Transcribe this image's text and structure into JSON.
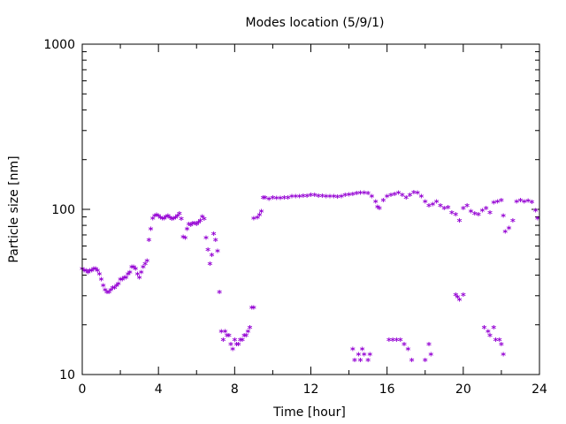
{
  "chart_data": {
    "type": "scatter",
    "title": "Modes location (5/9/1)",
    "xlabel": "Time [hour]",
    "ylabel": "Particle size [nm]",
    "xlim": [
      0,
      24
    ],
    "ylim": [
      10,
      1000
    ],
    "yscale": "log",
    "xticks": [
      0,
      4,
      8,
      12,
      16,
      20,
      24
    ],
    "yticks": [
      10,
      100,
      1000
    ],
    "xtick_labels": [
      "0",
      "4",
      "8",
      "12",
      "16",
      "20",
      "24"
    ],
    "ytick_labels": [
      "10",
      "100",
      "1000"
    ],
    "grid": false,
    "marker": "*",
    "color": "#9400d3",
    "series": [
      {
        "name": "mode",
        "points": [
          [
            0.0,
            43
          ],
          [
            0.1,
            42
          ],
          [
            0.2,
            42
          ],
          [
            0.3,
            41
          ],
          [
            0.4,
            42
          ],
          [
            0.5,
            42
          ],
          [
            0.6,
            43
          ],
          [
            0.7,
            43
          ],
          [
            0.8,
            42
          ],
          [
            0.9,
            40
          ],
          [
            1.0,
            37
          ],
          [
            1.1,
            34
          ],
          [
            1.2,
            32
          ],
          [
            1.3,
            31
          ],
          [
            1.4,
            31
          ],
          [
            1.5,
            32
          ],
          [
            1.6,
            33
          ],
          [
            1.7,
            33
          ],
          [
            1.8,
            34
          ],
          [
            1.9,
            35
          ],
          [
            2.0,
            37
          ],
          [
            2.1,
            37
          ],
          [
            2.2,
            38
          ],
          [
            2.3,
            38
          ],
          [
            2.4,
            40
          ],
          [
            2.5,
            41
          ],
          [
            2.6,
            44
          ],
          [
            2.7,
            44
          ],
          [
            2.8,
            43
          ],
          [
            2.9,
            40
          ],
          [
            3.0,
            38
          ],
          [
            3.1,
            41
          ],
          [
            3.2,
            44
          ],
          [
            3.3,
            46
          ],
          [
            3.4,
            48
          ],
          [
            3.5,
            64
          ],
          [
            3.6,
            75
          ],
          [
            3.7,
            87
          ],
          [
            3.8,
            90
          ],
          [
            3.9,
            91
          ],
          [
            4.0,
            90
          ],
          [
            4.1,
            88
          ],
          [
            4.2,
            87
          ],
          [
            4.3,
            87
          ],
          [
            4.4,
            89
          ],
          [
            4.5,
            90
          ],
          [
            4.6,
            88
          ],
          [
            4.7,
            86
          ],
          [
            4.8,
            87
          ],
          [
            4.9,
            88
          ],
          [
            5.0,
            90
          ],
          [
            5.1,
            93
          ],
          [
            5.2,
            86
          ],
          [
            5.3,
            67
          ],
          [
            5.4,
            66
          ],
          [
            5.5,
            75
          ],
          [
            5.6,
            80
          ],
          [
            5.7,
            79
          ],
          [
            5.8,
            81
          ],
          [
            5.9,
            81
          ],
          [
            6.0,
            80
          ],
          [
            6.1,
            82
          ],
          [
            6.2,
            84
          ],
          [
            6.3,
            89
          ],
          [
            6.4,
            86
          ],
          [
            6.5,
            66
          ],
          [
            6.6,
            56
          ],
          [
            6.7,
            46
          ],
          [
            6.8,
            52
          ],
          [
            6.9,
            70
          ],
          [
            7.0,
            64
          ],
          [
            7.1,
            55
          ],
          [
            7.2,
            31
          ],
          [
            7.3,
            18
          ],
          [
            7.4,
            16
          ],
          [
            7.5,
            18
          ],
          [
            7.6,
            17
          ],
          [
            7.7,
            17
          ],
          [
            7.8,
            15
          ],
          [
            7.9,
            14
          ],
          [
            8.0,
            16
          ],
          [
            8.1,
            15
          ],
          [
            8.2,
            15
          ],
          [
            8.3,
            16
          ],
          [
            8.4,
            16
          ],
          [
            8.5,
            17
          ],
          [
            8.6,
            17
          ],
          [
            8.7,
            18
          ],
          [
            8.8,
            19
          ],
          [
            8.9,
            25
          ],
          [
            9.0,
            25
          ],
          [
            9.0,
            87
          ],
          [
            9.2,
            88
          ],
          [
            9.3,
            91
          ],
          [
            9.4,
            96
          ],
          [
            9.5,
            116
          ],
          [
            9.6,
            116
          ],
          [
            9.8,
            114
          ],
          [
            10.0,
            116
          ],
          [
            10.2,
            115
          ],
          [
            10.4,
            115
          ],
          [
            10.6,
            116
          ],
          [
            10.8,
            116
          ],
          [
            11.0,
            118
          ],
          [
            11.2,
            118
          ],
          [
            11.4,
            118
          ],
          [
            11.6,
            119
          ],
          [
            11.8,
            119
          ],
          [
            12.0,
            120
          ],
          [
            12.2,
            120
          ],
          [
            12.4,
            119
          ],
          [
            12.6,
            119
          ],
          [
            12.8,
            118
          ],
          [
            13.0,
            118
          ],
          [
            13.2,
            118
          ],
          [
            13.4,
            117
          ],
          [
            13.6,
            118
          ],
          [
            13.8,
            120
          ],
          [
            14.0,
            121
          ],
          [
            14.2,
            122
          ],
          [
            14.4,
            123
          ],
          [
            14.6,
            124
          ],
          [
            14.8,
            124
          ],
          [
            15.0,
            123
          ],
          [
            15.2,
            118
          ],
          [
            15.4,
            110
          ],
          [
            15.5,
            102
          ],
          [
            15.6,
            100
          ],
          [
            15.8,
            112
          ],
          [
            16.0,
            118
          ],
          [
            16.2,
            120
          ],
          [
            16.4,
            122
          ],
          [
            16.6,
            124
          ],
          [
            16.8,
            120
          ],
          [
            17.0,
            116
          ],
          [
            17.2,
            120
          ],
          [
            17.4,
            125
          ],
          [
            17.6,
            124
          ],
          [
            17.8,
            118
          ],
          [
            18.0,
            110
          ],
          [
            18.2,
            104
          ],
          [
            18.4,
            106
          ],
          [
            18.6,
            110
          ],
          [
            18.8,
            104
          ],
          [
            19.0,
            100
          ],
          [
            19.2,
            101
          ],
          [
            19.4,
            94
          ],
          [
            19.6,
            92
          ],
          [
            19.8,
            84
          ],
          [
            20.0,
            100
          ],
          [
            20.2,
            104
          ],
          [
            20.4,
            96
          ],
          [
            20.6,
            93
          ],
          [
            20.8,
            92
          ],
          [
            21.0,
            97
          ],
          [
            21.2,
            100
          ],
          [
            21.4,
            94
          ],
          [
            21.6,
            108
          ],
          [
            21.8,
            110
          ],
          [
            22.0,
            112
          ],
          [
            22.1,
            90
          ],
          [
            22.2,
            72
          ],
          [
            22.4,
            76
          ],
          [
            22.6,
            84
          ],
          [
            22.8,
            110
          ],
          [
            23.0,
            112
          ],
          [
            23.2,
            110
          ],
          [
            23.4,
            111
          ],
          [
            23.6,
            109
          ],
          [
            23.8,
            97
          ],
          [
            23.9,
            87
          ],
          [
            14.2,
            14
          ],
          [
            14.3,
            12
          ],
          [
            14.5,
            13
          ],
          [
            14.6,
            12
          ],
          [
            14.7,
            14
          ],
          [
            14.8,
            13
          ],
          [
            15.0,
            12
          ],
          [
            15.1,
            13
          ],
          [
            16.1,
            16
          ],
          [
            16.3,
            16
          ],
          [
            16.5,
            16
          ],
          [
            16.7,
            16
          ],
          [
            16.9,
            15
          ],
          [
            17.1,
            14
          ],
          [
            17.3,
            12
          ],
          [
            18.0,
            12
          ],
          [
            18.2,
            15
          ],
          [
            18.3,
            13
          ],
          [
            19.6,
            30
          ],
          [
            19.7,
            29
          ],
          [
            19.8,
            28
          ],
          [
            20.0,
            30
          ],
          [
            21.1,
            19
          ],
          [
            21.3,
            18
          ],
          [
            21.4,
            17
          ],
          [
            21.6,
            19
          ],
          [
            21.7,
            16
          ],
          [
            21.9,
            16
          ],
          [
            22.0,
            15
          ],
          [
            22.1,
            13
          ]
        ]
      }
    ]
  }
}
